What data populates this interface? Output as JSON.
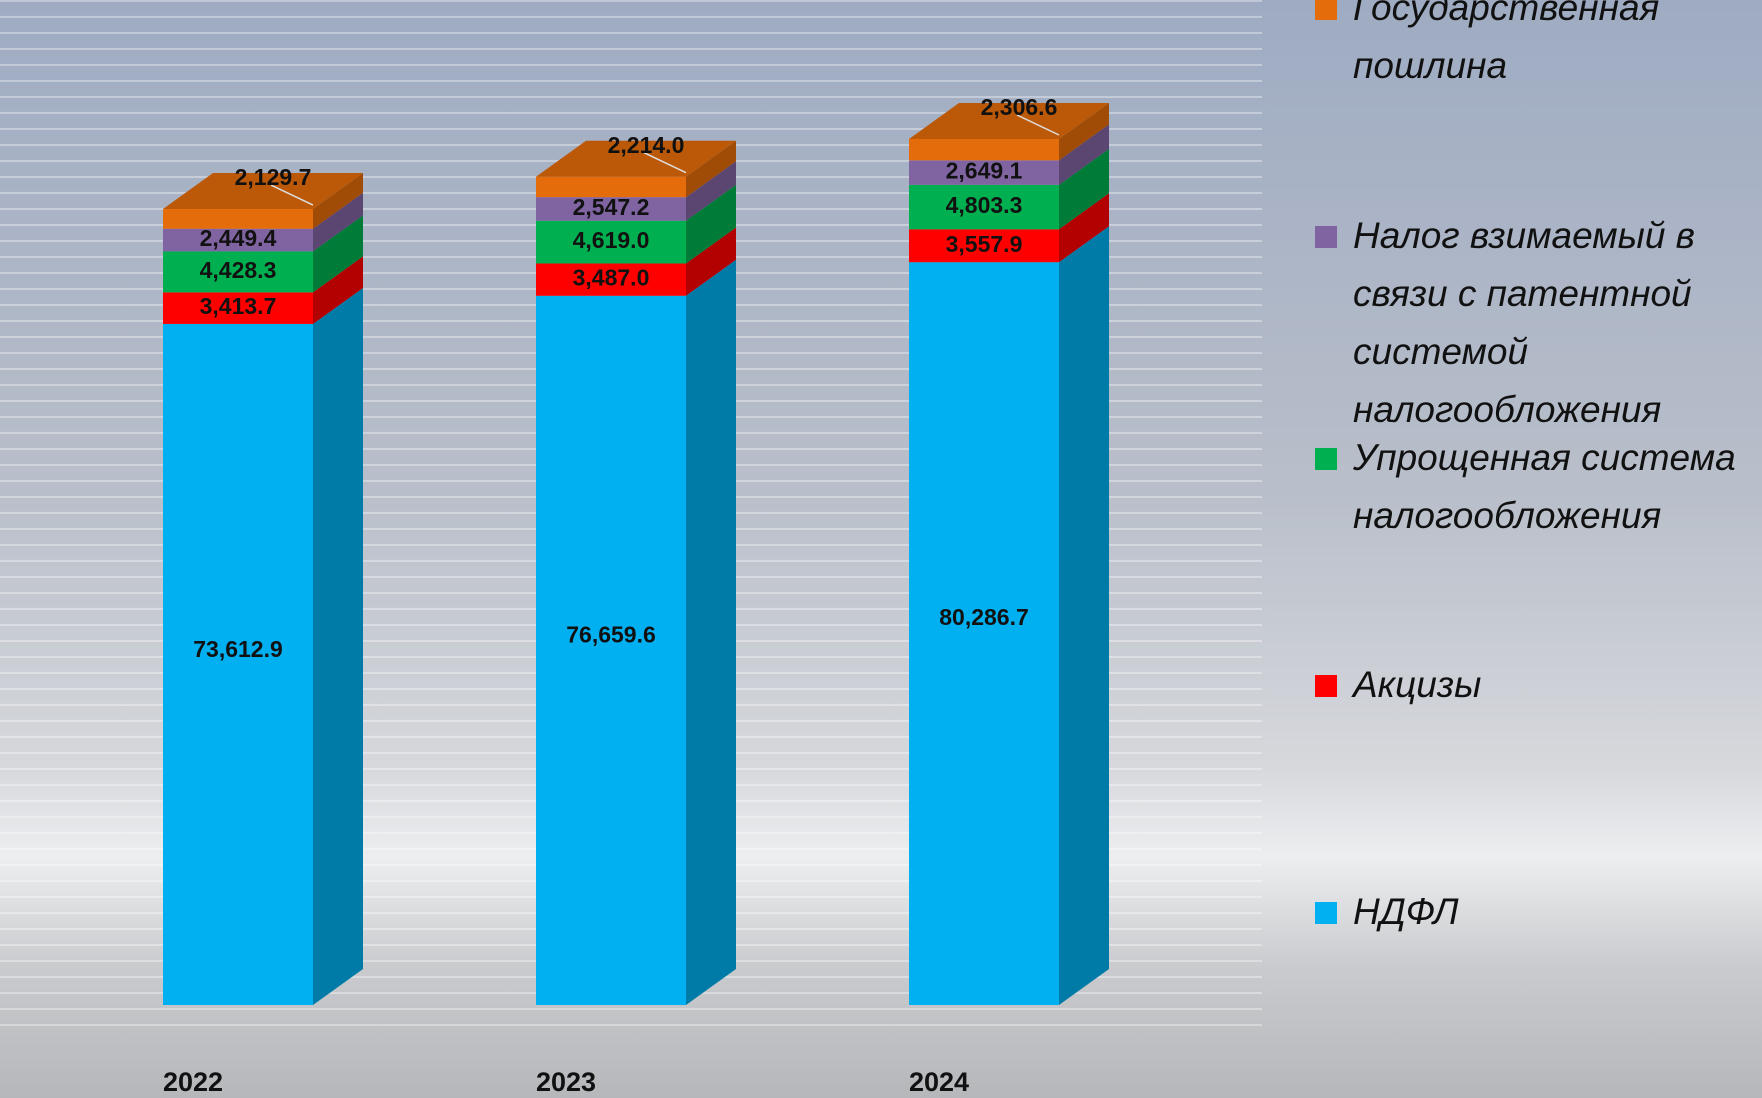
{
  "chart_data": {
    "type": "bar3d-stacked",
    "categories": [
      "2022",
      "2023",
      "2024"
    ],
    "series": [
      {
        "name": "НДФЛ",
        "color": "#00b0f0",
        "values": [
          73612.9,
          76659.6,
          80286.7
        ],
        "value_labels": [
          "73,612.9",
          "76,659.6",
          "80,286.7"
        ]
      },
      {
        "name": "Акцизы",
        "color": "#ff0000",
        "values": [
          3413.7,
          3487.0,
          3557.9
        ],
        "value_labels": [
          "3,413.7",
          "3,487.0",
          "3,557.9"
        ]
      },
      {
        "name": "Упрощенная система налогообложения",
        "color": "#00b050",
        "values": [
          4428.3,
          4619.0,
          4803.3
        ],
        "value_labels": [
          "4,428.3",
          "4,619.0",
          "4,803.3"
        ]
      },
      {
        "name": "Налог взимаемый в связи с патентной системой налогообложения",
        "color": "#8064a2",
        "values": [
          2449.4,
          2547.2,
          2649.1
        ],
        "value_labels": [
          "2,449.4",
          "2,547.2",
          "2,649.1"
        ]
      },
      {
        "name": "Государственная пошлина",
        "color": "#e46c0a",
        "values": [
          2129.7,
          2214.0,
          2306.6
        ],
        "value_labels": [
          "2,129.7",
          "2,214.0",
          "2,306.6"
        ]
      }
    ],
    "legend": "right"
  }
}
